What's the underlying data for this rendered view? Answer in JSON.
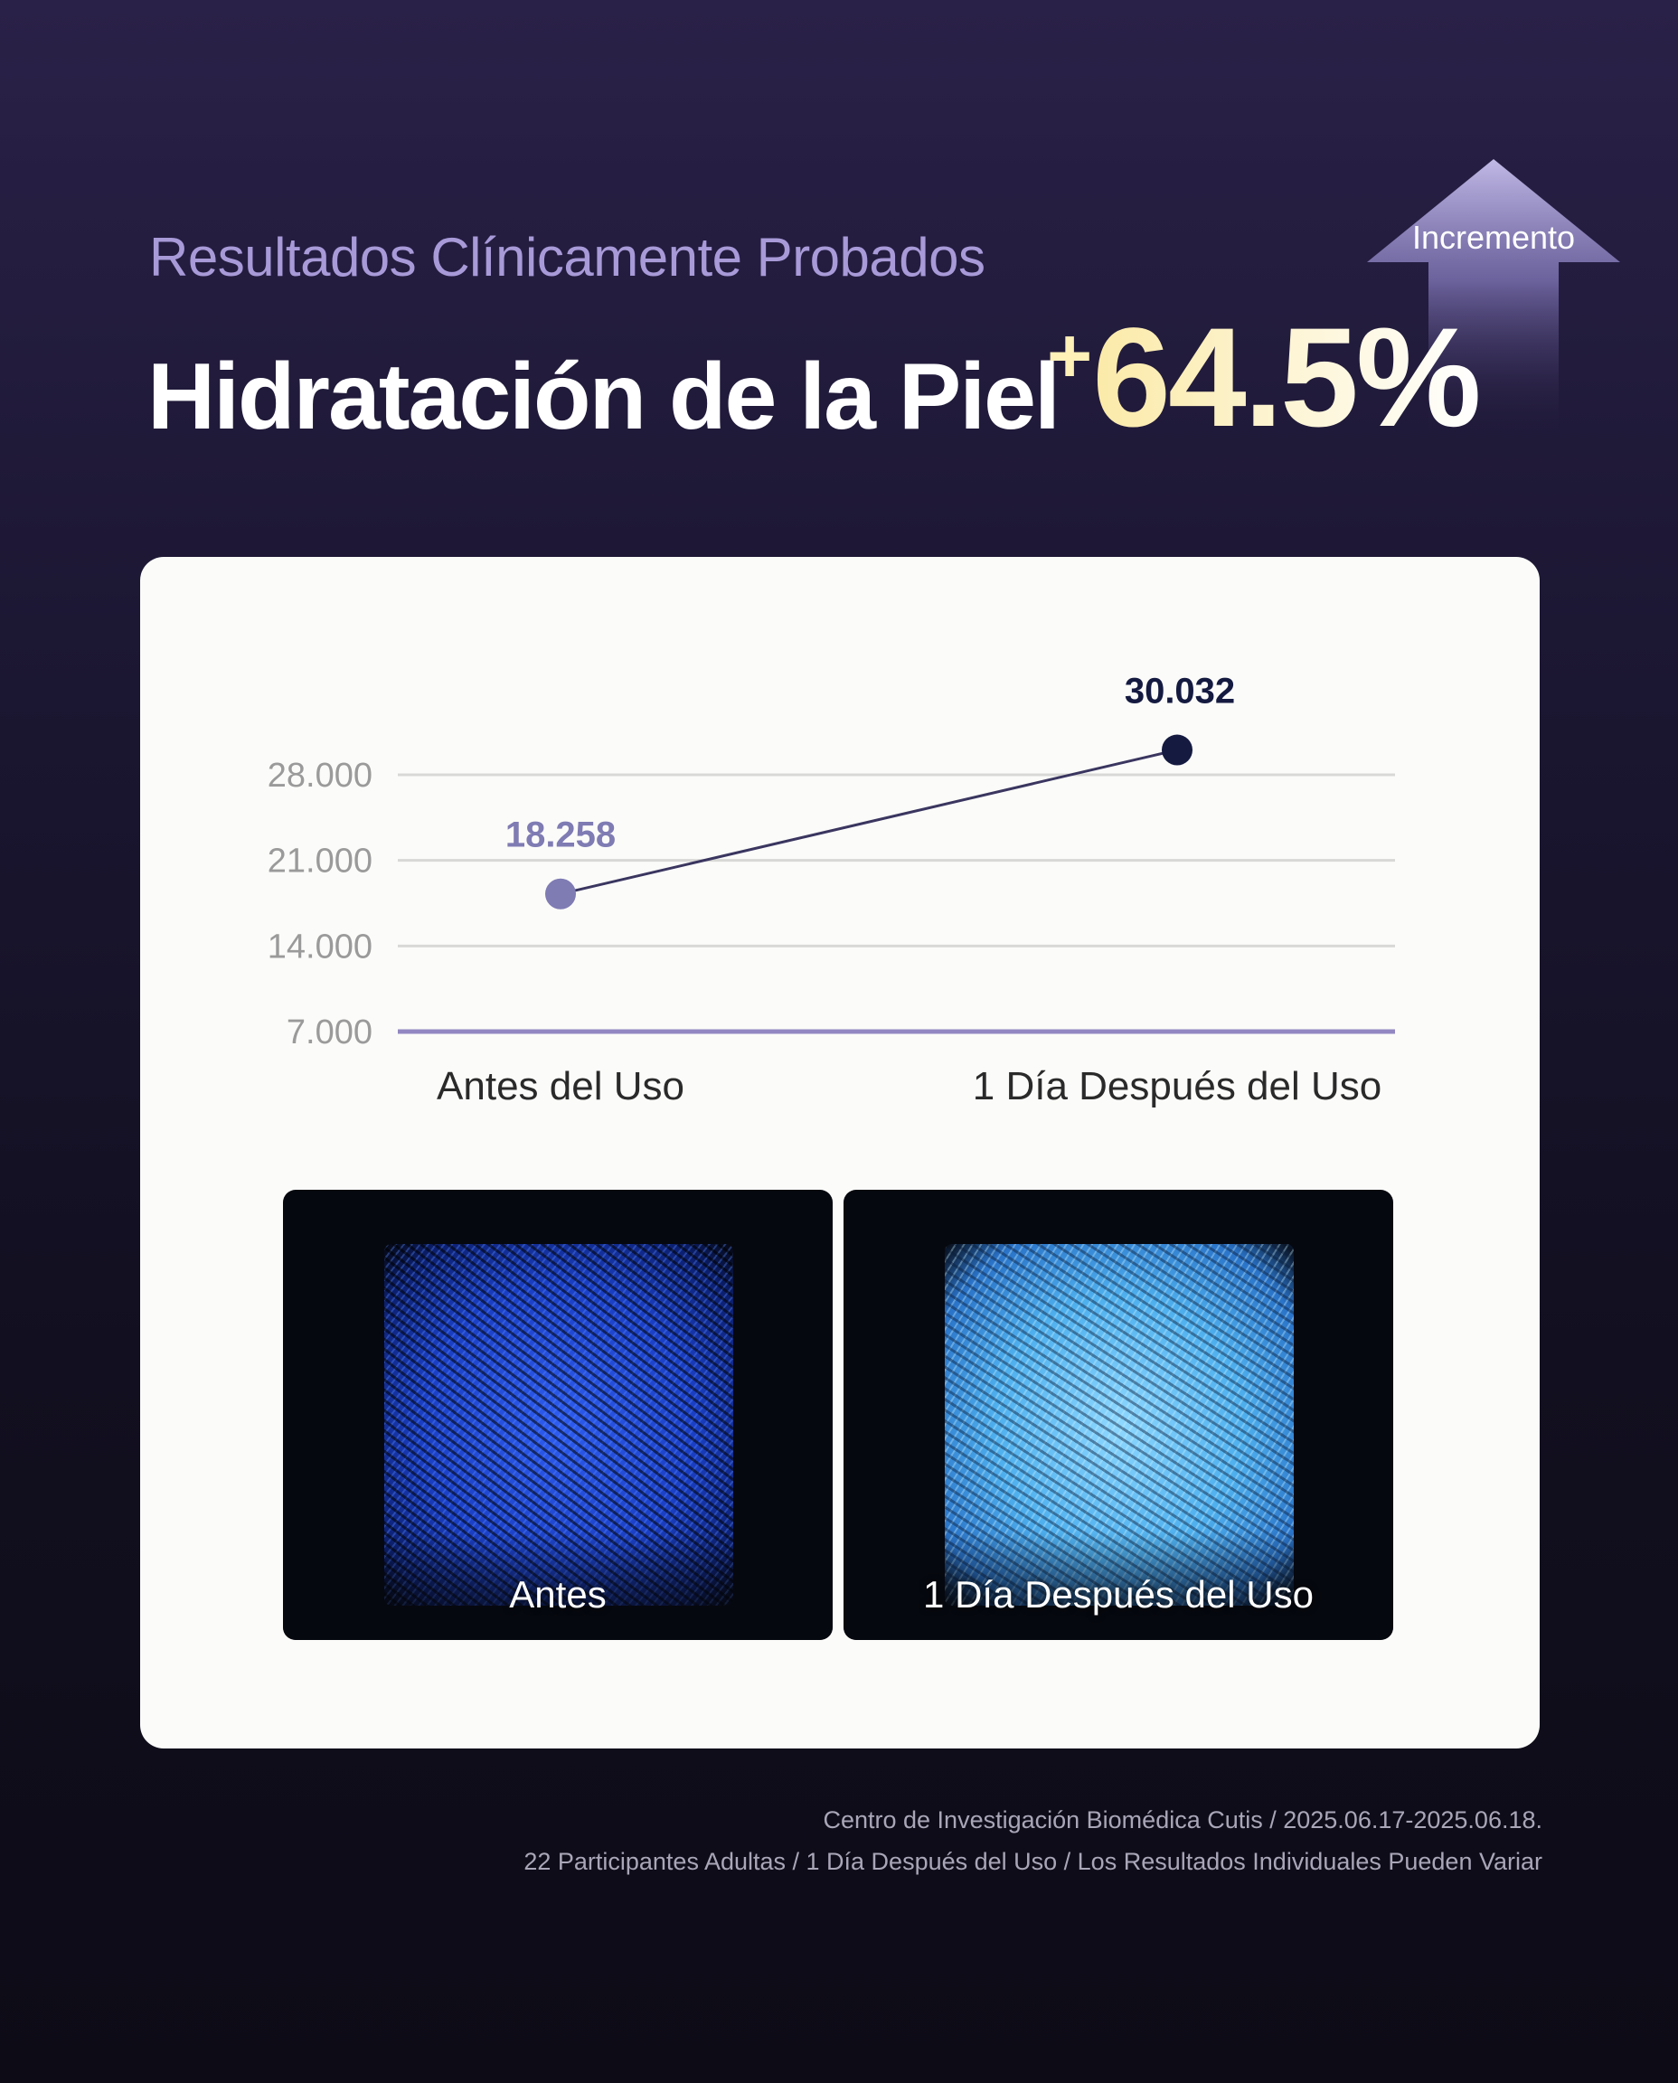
{
  "header": {
    "subtitle": "Resultados Clínicamente Probados",
    "headline": "Hidratación de la Piel",
    "increase_plus": "+",
    "increase_value": "64.5%",
    "increase_label": "Incremento"
  },
  "chart_data": {
    "type": "line",
    "categories": [
      "Antes del Uso",
      "1 Día Después del Uso"
    ],
    "series": [
      {
        "values": [
          18258,
          30032
        ],
        "labels": [
          "18.258",
          "30.032"
        ]
      }
    ],
    "yticks": [
      7000,
      14000,
      21000,
      28000
    ],
    "ytick_labels": [
      "7.000",
      "14.000",
      "21.000",
      "28.000"
    ],
    "ylim": [
      7000,
      30032
    ],
    "grid": true,
    "title": "",
    "xlabel": "",
    "ylabel": "",
    "colors": {
      "start_point": "#7f7bb3",
      "end_point": "#141a40",
      "baseline": "#9287c2",
      "grid": "#d8d8d6"
    }
  },
  "photos": [
    {
      "caption": "Antes"
    },
    {
      "caption": "1 Día Después del Uso"
    }
  ],
  "footnotes": {
    "line1": "Centro de Investigación Biomédica Cutis / 2025.06.17-2025.06.18.",
    "line2": "22 Participantes Adultas / 1 Día Después del Uso / Los Resultados Individuales Pueden Variar"
  },
  "colors": {
    "subtitle": "#a89ad8",
    "percent": "#fff4c8",
    "card": "#fbfbf9"
  }
}
